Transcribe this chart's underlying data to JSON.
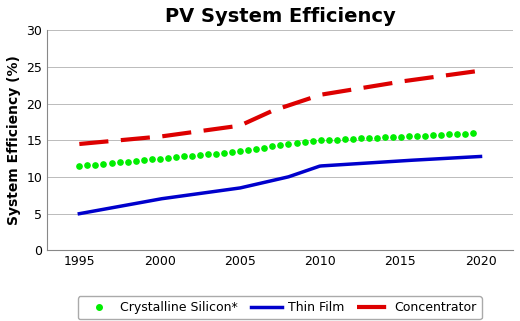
{
  "title": "PV System Efficiency",
  "ylabel": "System Efficiency (%)",
  "xlim": [
    1993,
    2022
  ],
  "ylim": [
    0,
    30
  ],
  "yticks": [
    0,
    5,
    10,
    15,
    20,
    25,
    30
  ],
  "xticks": [
    1995,
    2000,
    2005,
    2010,
    2015,
    2020
  ],
  "background_color": "#ffffff",
  "series": [
    {
      "label": "Crystalline Silicon*",
      "x": [
        1995,
        2000,
        2005,
        2008,
        2010,
        2015,
        2020
      ],
      "y": [
        11.5,
        12.5,
        13.5,
        14.5,
        15.0,
        15.5,
        16.0
      ],
      "color": "#00ee00",
      "linestyle": "dotted",
      "linewidth": 3.0
    },
    {
      "label": "Thin Film",
      "x": [
        1995,
        2000,
        2005,
        2008,
        2010,
        2015,
        2020
      ],
      "y": [
        5.0,
        7.0,
        8.5,
        10.0,
        11.5,
        12.2,
        12.8
      ],
      "color": "#0000cc",
      "linestyle": "solid",
      "linewidth": 2.5
    },
    {
      "label": "Concentrator",
      "x": [
        1995,
        2000,
        2005,
        2007,
        2010,
        2015,
        2020
      ],
      "y": [
        14.5,
        15.5,
        17.0,
        19.0,
        21.2,
        23.0,
        24.5
      ],
      "color": "#dd0000",
      "linestyle": "dashed",
      "linewidth": 3.0
    }
  ],
  "title_fontsize": 14,
  "axis_label_fontsize": 10,
  "tick_fontsize": 9,
  "legend_fontsize": 9,
  "grid_color": "#bbbbbb",
  "grid_linewidth": 0.7
}
